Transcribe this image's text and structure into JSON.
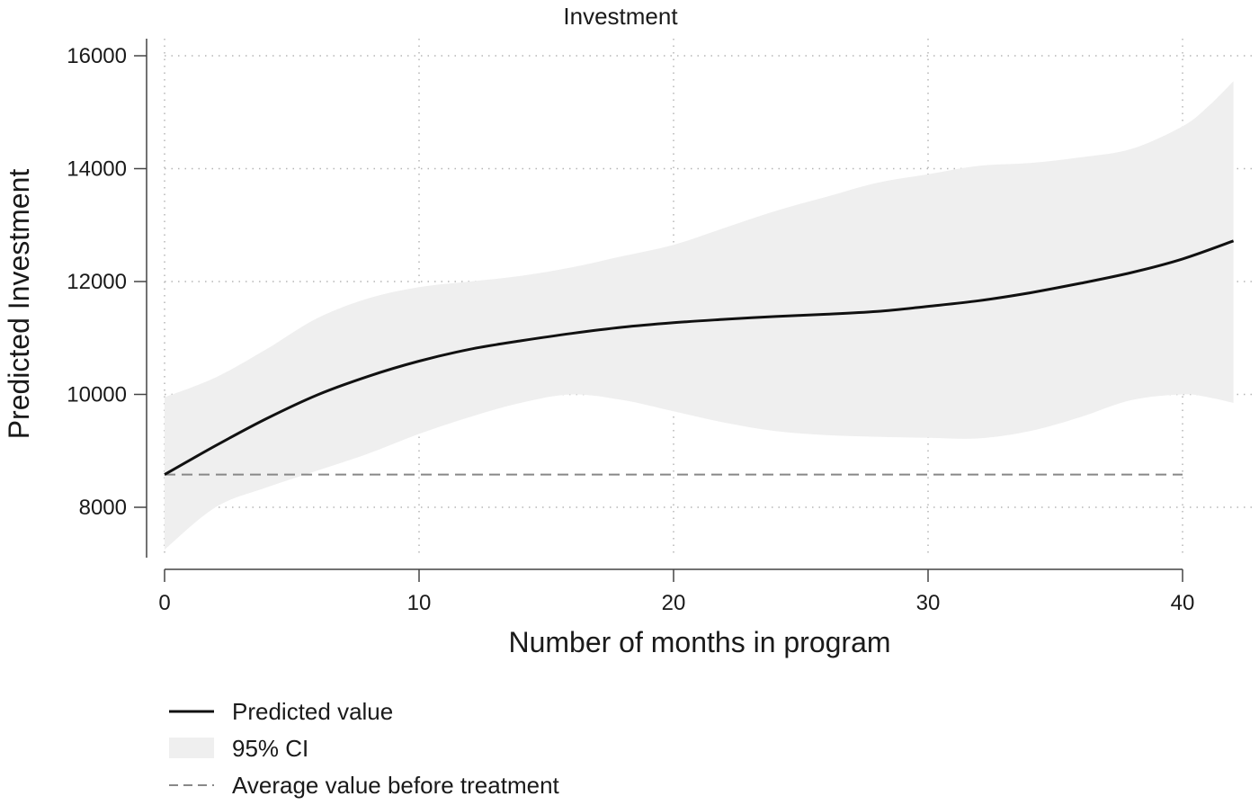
{
  "chart_data": {
    "type": "line",
    "title": "Investment",
    "xlabel": "Number of months in program",
    "ylabel": "Predicted Investment",
    "xlim": [
      0,
      42
    ],
    "ylim": [
      6900,
      16400
    ],
    "x_ticks": [
      "0",
      "10",
      "20",
      "30",
      "40"
    ],
    "y_ticks": [
      "8000",
      "10000",
      "12000",
      "14000",
      "16000"
    ],
    "grid": true,
    "legend_position": "bottom-left",
    "series": [
      {
        "name": "Predicted value",
        "style": "solid",
        "color": "#111111",
        "x": [
          0,
          2,
          4,
          6,
          8,
          10,
          12,
          14,
          16,
          18,
          20,
          22,
          24,
          26,
          28,
          30,
          32,
          34,
          36,
          38,
          40,
          42
        ],
        "y": [
          8580,
          9090,
          9570,
          9990,
          10320,
          10590,
          10800,
          10950,
          11080,
          11190,
          11270,
          11330,
          11380,
          11420,
          11470,
          11560,
          11660,
          11800,
          11970,
          12160,
          12400,
          12720
        ]
      },
      {
        "name": "95% CI",
        "style": "band",
        "color": "#efefef",
        "x": [
          0,
          2,
          4,
          6,
          8,
          10,
          12,
          14,
          16,
          18,
          20,
          22,
          24,
          26,
          28,
          30,
          32,
          34,
          36,
          38,
          40,
          41,
          42
        ],
        "lower": [
          7250,
          8000,
          8350,
          8650,
          8950,
          9300,
          9600,
          9850,
          10000,
          9900,
          9700,
          9500,
          9350,
          9280,
          9250,
          9230,
          9220,
          9350,
          9600,
          9900,
          10000,
          9950,
          9850
        ],
        "upper": [
          9950,
          10300,
          10800,
          11350,
          11700,
          11900,
          12000,
          12100,
          12250,
          12450,
          12650,
          12950,
          13250,
          13500,
          13750,
          13900,
          14050,
          14100,
          14200,
          14350,
          14750,
          15100,
          15550
        ]
      },
      {
        "name": "Average value before treatment",
        "style": "dashed",
        "color": "#888888",
        "x": [
          0,
          40
        ],
        "y": [
          8580,
          8580
        ]
      }
    ]
  }
}
